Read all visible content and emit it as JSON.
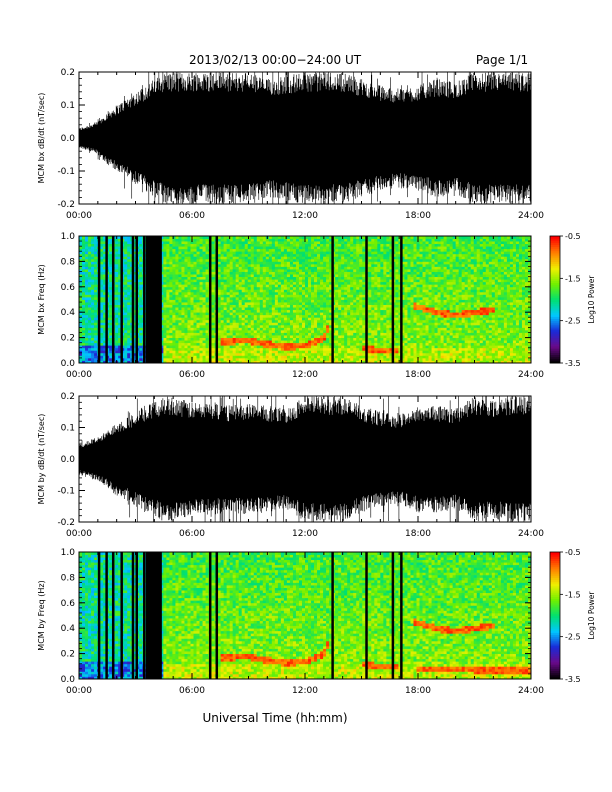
{
  "header": {
    "title": "2013/02/13  00:00−24:00 UT",
    "page": "Page 1/1"
  },
  "footer": {
    "xlabel": "Universal Time (hh:mm)"
  },
  "colors": {
    "waveform": "#000000",
    "colormap": [
      "#000000",
      "#6a0a8a",
      "#1a2ad8",
      "#00c8ff",
      "#00e070",
      "#70f000",
      "#f0f000",
      "#ff8000",
      "#ff0000"
    ]
  },
  "chart_data": [
    {
      "type": "line",
      "ylabel": "MCM bx dB/dt (nT/sec)",
      "xlim": [
        0,
        24
      ],
      "ylim": [
        -0.2,
        0.2
      ],
      "xticks": [
        "00:00",
        "06:00",
        "12:00",
        "18:00",
        "24:00"
      ],
      "yticks": [
        "-0.2",
        "-0.1",
        "0.0",
        "0.1",
        "0.2"
      ],
      "series": [
        {
          "x": [
            0,
            0.5,
            1,
            1.5,
            2,
            2.5,
            3,
            3.5,
            4,
            4.5,
            5,
            6,
            7,
            8,
            9,
            10,
            11,
            12,
            13,
            14,
            15,
            16,
            17,
            18,
            19,
            20,
            21,
            22,
            23,
            24
          ],
          "amplitude": [
            0.03,
            0.04,
            0.05,
            0.08,
            0.1,
            0.12,
            0.14,
            0.16,
            0.18,
            0.2,
            0.2,
            0.2,
            0.2,
            0.2,
            0.2,
            0.18,
            0.19,
            0.2,
            0.2,
            0.2,
            0.18,
            0.16,
            0.15,
            0.16,
            0.18,
            0.17,
            0.2,
            0.2,
            0.2,
            0.2
          ]
        }
      ]
    },
    {
      "type": "heatmap",
      "ylabel": "MCM bx Freq (Hz)",
      "colorbar_label": "Log10 Power",
      "xlim": [
        0,
        24
      ],
      "ylim": [
        0.0,
        1.0
      ],
      "xticks": [
        "00:00",
        "06:00",
        "12:00",
        "18:00",
        "24:00"
      ],
      "yticks": [
        "0.0",
        "0.2",
        "0.4",
        "0.6",
        "0.8",
        "1.0"
      ],
      "colorbar_ticks": [
        "-0.5",
        "-1.5",
        "-2.5",
        "-3.5"
      ],
      "clim": [
        -3.5,
        -0.5
      ],
      "data_gaps_hr": [
        1.0,
        1.4,
        1.75,
        2.2,
        2.8,
        3.0,
        3.4,
        6.9,
        7.25,
        13.4,
        15.2,
        16.6,
        17.05
      ],
      "bright_bands": [
        {
          "x": [
            7.5,
            9,
            10,
            11,
            12,
            13,
            13.3
          ],
          "freq_hz": [
            0.17,
            0.18,
            0.15,
            0.13,
            0.14,
            0.2,
            0.3
          ]
        },
        {
          "x": [
            15,
            16,
            17
          ],
          "freq_hz": [
            0.12,
            0.1,
            0.1
          ]
        },
        {
          "x": [
            17.8,
            19,
            20,
            21,
            22
          ],
          "freq_hz": [
            0.45,
            0.4,
            0.38,
            0.4,
            0.42
          ]
        }
      ]
    },
    {
      "type": "line",
      "ylabel": "MCM by dB/dt (nT/sec)",
      "xlim": [
        0,
        24
      ],
      "ylim": [
        -0.2,
        0.2
      ],
      "xticks": [
        "00:00",
        "06:00",
        "12:00",
        "18:00",
        "24:00"
      ],
      "yticks": [
        "-0.2",
        "-0.1",
        "0.0",
        "0.1",
        "0.2"
      ],
      "series": [
        {
          "x": [
            0,
            0.5,
            1,
            1.5,
            2,
            2.5,
            3,
            3.5,
            4,
            4.5,
            5,
            6,
            7,
            8,
            9,
            10,
            11,
            12,
            13,
            14,
            15,
            16,
            17,
            18,
            19,
            20,
            21,
            22,
            23,
            24
          ],
          "amplitude": [
            0.05,
            0.06,
            0.07,
            0.09,
            0.12,
            0.13,
            0.15,
            0.17,
            0.18,
            0.2,
            0.2,
            0.18,
            0.18,
            0.17,
            0.18,
            0.17,
            0.16,
            0.2,
            0.2,
            0.2,
            0.17,
            0.15,
            0.14,
            0.17,
            0.17,
            0.16,
            0.2,
            0.19,
            0.2,
            0.2
          ]
        }
      ]
    },
    {
      "type": "heatmap",
      "ylabel": "MCM by Freq (Hz)",
      "colorbar_label": "Log10 Power",
      "xlim": [
        0,
        24
      ],
      "ylim": [
        0.0,
        1.0
      ],
      "xticks": [
        "00:00",
        "06:00",
        "12:00",
        "18:00",
        "24:00"
      ],
      "yticks": [
        "0.0",
        "0.2",
        "0.4",
        "0.6",
        "0.8",
        "1.0"
      ],
      "colorbar_ticks": [
        "-0.5",
        "-1.5",
        "-2.5",
        "-3.5"
      ],
      "clim": [
        -3.5,
        -0.5
      ],
      "data_gaps_hr": [
        1.0,
        1.4,
        1.75,
        2.2,
        2.8,
        3.0,
        3.4,
        6.9,
        7.25,
        13.4,
        15.2,
        16.6,
        17.05
      ],
      "bright_bands": [
        {
          "x": [
            7.5,
            9,
            10,
            11,
            12,
            13,
            13.3
          ],
          "freq_hz": [
            0.17,
            0.18,
            0.15,
            0.13,
            0.14,
            0.2,
            0.3
          ]
        },
        {
          "x": [
            15,
            16,
            17
          ],
          "freq_hz": [
            0.12,
            0.1,
            0.1
          ]
        },
        {
          "x": [
            17.8,
            19,
            20,
            21,
            22
          ],
          "freq_hz": [
            0.45,
            0.4,
            0.38,
            0.4,
            0.42
          ]
        },
        {
          "x": [
            18,
            20,
            22,
            24
          ],
          "freq_hz": [
            0.08,
            0.08,
            0.07,
            0.07
          ]
        }
      ]
    }
  ]
}
